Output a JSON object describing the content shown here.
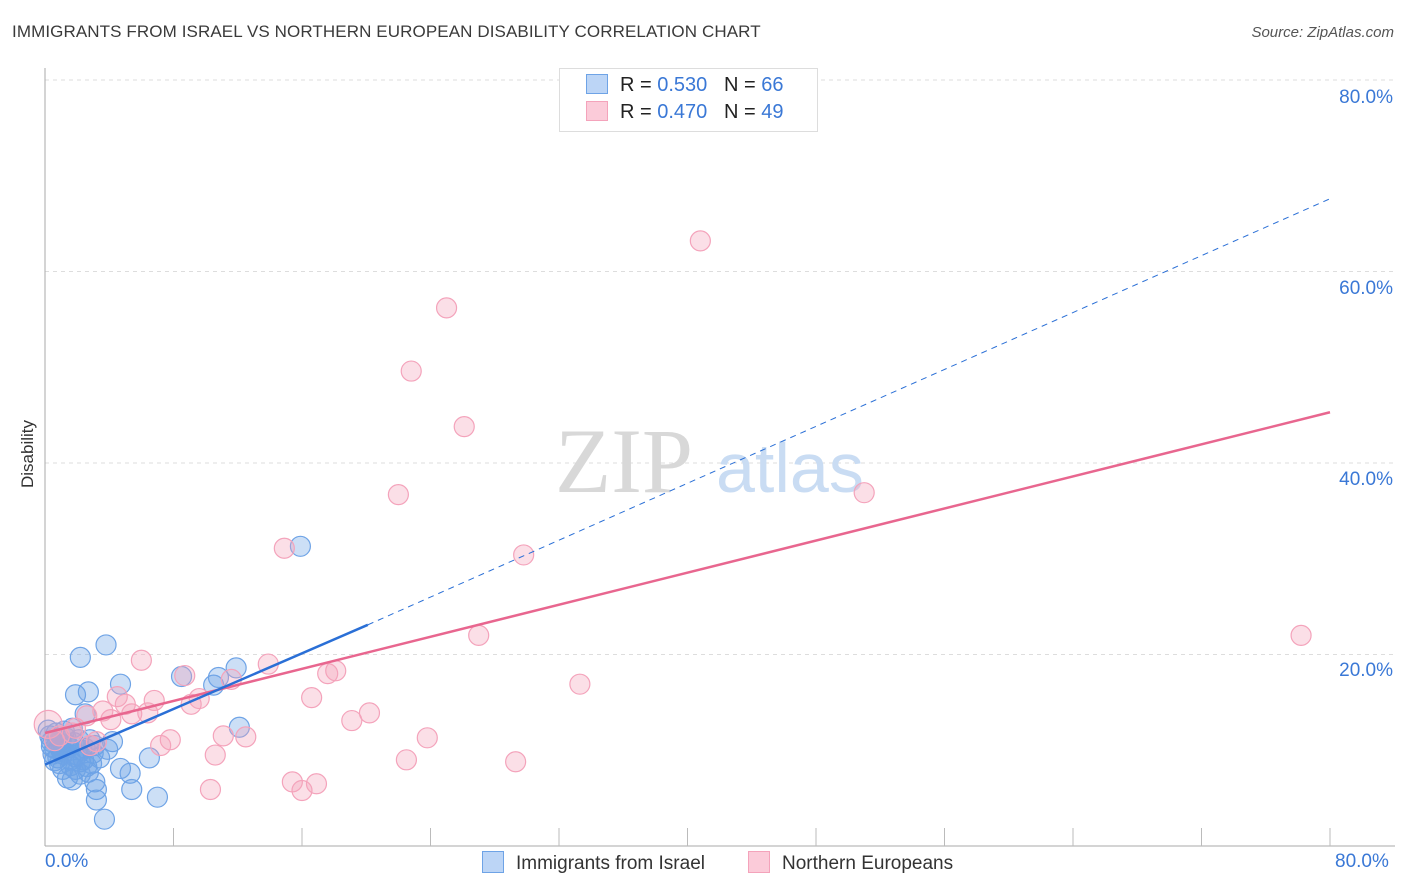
{
  "chart_data": {
    "type": "scatter",
    "title": "IMMIGRANTS FROM ISRAEL VS NORTHERN EUROPEAN DISABILITY CORRELATION CHART",
    "source": "Source: ZipAtlas.com",
    "xlabel": "",
    "ylabel": "Disability",
    "xlim": [
      0,
      80
    ],
    "ylim": [
      0,
      80
    ],
    "x_tick_labels": [
      "0.0%",
      "80.0%"
    ],
    "y_tick_labels": [
      "20.0%",
      "40.0%",
      "60.0%",
      "80.0%"
    ],
    "y_ticks": [
      20,
      40,
      60,
      80
    ],
    "grid": true,
    "watermark": "ZIPatlas",
    "legend_position": "top-center",
    "series": [
      {
        "name": "Immigrants from Israel",
        "color": "#6ea3e6",
        "line_color": "#2a6fd6",
        "R": "0.530",
        "N": "66",
        "trend": {
          "x0": 0,
          "y0": 8.5,
          "x_solid_end": 20.1,
          "y_solid_end": 23.1,
          "x1": 80,
          "y1": 67.6
        },
        "points": [
          [
            15.9,
            31.3
          ],
          [
            3.8,
            21.0
          ],
          [
            2.2,
            19.7
          ],
          [
            4.7,
            16.9
          ],
          [
            2.7,
            16.1
          ],
          [
            1.9,
            15.8
          ],
          [
            11.9,
            18.6
          ],
          [
            10.8,
            17.6
          ],
          [
            10.5,
            16.8
          ],
          [
            8.5,
            17.7
          ],
          [
            12.1,
            12.4
          ],
          [
            2.5,
            13.8
          ],
          [
            6.5,
            9.2
          ],
          [
            4.7,
            8.1
          ],
          [
            5.3,
            7.6
          ],
          [
            4.2,
            10.9
          ],
          [
            3.9,
            10.1
          ],
          [
            5.4,
            5.9
          ],
          [
            7.0,
            5.1
          ],
          [
            3.2,
            5.9
          ],
          [
            3.2,
            4.8
          ],
          [
            3.7,
            2.8
          ],
          [
            3.1,
            6.7
          ],
          [
            0.2,
            12.1
          ],
          [
            0.4,
            10.9
          ],
          [
            0.6,
            10.2
          ],
          [
            0.9,
            10.5
          ],
          [
            1.2,
            9.8
          ],
          [
            0.8,
            9.2
          ],
          [
            1.6,
            9.0
          ],
          [
            1.1,
            8.0
          ],
          [
            1.9,
            8.0
          ],
          [
            2.2,
            8.8
          ],
          [
            1.4,
            7.1
          ],
          [
            1.7,
            6.9
          ],
          [
            2.7,
            7.7
          ],
          [
            2.5,
            10.2
          ],
          [
            2.8,
            11.1
          ],
          [
            3.1,
            10.5
          ],
          [
            2.1,
            11.1
          ],
          [
            1.3,
            11.3
          ],
          [
            3.4,
            9.2
          ],
          [
            1.7,
            12.3
          ],
          [
            0.3,
            11.5
          ],
          [
            0.5,
            9.6
          ],
          [
            1.0,
            10.0
          ],
          [
            1.5,
            10.3
          ],
          [
            0.7,
            11.8
          ],
          [
            2.0,
            9.5
          ],
          [
            2.4,
            9.0
          ],
          [
            1.8,
            10.8
          ],
          [
            0.9,
            8.6
          ],
          [
            1.2,
            12.0
          ],
          [
            2.6,
            8.3
          ],
          [
            3.0,
            9.7
          ],
          [
            1.4,
            10.6
          ],
          [
            0.6,
            8.9
          ],
          [
            2.3,
            10.0
          ],
          [
            1.0,
            11.0
          ],
          [
            1.6,
            8.4
          ],
          [
            2.9,
            8.6
          ],
          [
            0.4,
            10.4
          ],
          [
            1.9,
            9.3
          ],
          [
            1.1,
            9.6
          ],
          [
            2.2,
            7.5
          ],
          [
            0.8,
            10.8
          ]
        ]
      },
      {
        "name": "Northern Europeans",
        "color": "#f4a3bb",
        "line_color": "#e8668f",
        "R": "0.470",
        "N": "49",
        "trend": {
          "x0": 0,
          "y0": 11.8,
          "x1": 80,
          "y1": 45.3
        },
        "points": [
          [
            40.8,
            63.2
          ],
          [
            25.0,
            56.2
          ],
          [
            22.8,
            49.6
          ],
          [
            26.1,
            43.8
          ],
          [
            22.0,
            36.7
          ],
          [
            51.0,
            36.9
          ],
          [
            29.8,
            30.4
          ],
          [
            14.9,
            31.1
          ],
          [
            27.0,
            22.0
          ],
          [
            78.2,
            22.0
          ],
          [
            6.0,
            19.4
          ],
          [
            13.9,
            19.0
          ],
          [
            18.1,
            18.3
          ],
          [
            17.6,
            18.0
          ],
          [
            8.7,
            17.8
          ],
          [
            11.6,
            17.4
          ],
          [
            33.3,
            16.9
          ],
          [
            4.5,
            15.6
          ],
          [
            6.8,
            15.2
          ],
          [
            9.6,
            15.4
          ],
          [
            16.6,
            15.5
          ],
          [
            9.1,
            14.8
          ],
          [
            5.0,
            14.8
          ],
          [
            3.6,
            14.1
          ],
          [
            5.4,
            13.8
          ],
          [
            6.4,
            13.9
          ],
          [
            2.6,
            13.6
          ],
          [
            4.1,
            13.2
          ],
          [
            20.2,
            13.9
          ],
          [
            19.1,
            13.1
          ],
          [
            1.9,
            12.3
          ],
          [
            0.9,
            11.5
          ],
          [
            11.1,
            11.5
          ],
          [
            12.5,
            11.4
          ],
          [
            7.8,
            11.1
          ],
          [
            23.8,
            11.3
          ],
          [
            7.2,
            10.5
          ],
          [
            3.2,
            10.9
          ],
          [
            10.6,
            9.5
          ],
          [
            22.5,
            9.0
          ],
          [
            29.3,
            8.8
          ],
          [
            15.4,
            6.7
          ],
          [
            16.9,
            6.5
          ],
          [
            16.0,
            5.8
          ],
          [
            10.3,
            5.9
          ],
          [
            0.2,
            12.7
          ],
          [
            1.7,
            11.8
          ],
          [
            2.8,
            10.5
          ],
          [
            0.6,
            11.0
          ]
        ]
      }
    ]
  }
}
